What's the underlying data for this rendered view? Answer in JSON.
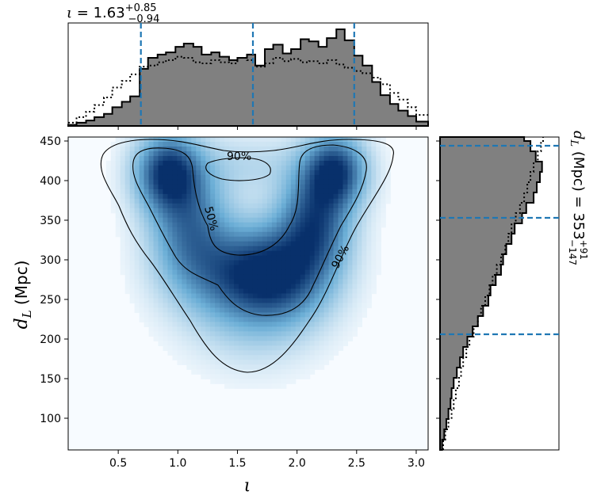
{
  "chart_data": {
    "type": "corner",
    "colors": {
      "histogram_fill": "#808080",
      "histogram_edge": "#000000",
      "quantile_line": "#1f77b4",
      "density_low": "#f7fbff",
      "density_high": "#08306b",
      "contour": "#000000"
    },
    "top_title": {
      "symbol": "ι",
      "median": "1.63",
      "plus": "+0.85",
      "minus": "−0.94"
    },
    "right_title": {
      "symbol": "d",
      "subscript": "L",
      "unit": "(Mpc)",
      "median": "353",
      "plus": "+91",
      "minus": "−147"
    },
    "xaxis": {
      "label": "ι",
      "range": [
        0.08,
        3.1
      ],
      "ticks": [
        0.5,
        1.0,
        1.5,
        2.0,
        2.5,
        3.0
      ],
      "ticklabels": [
        "0.5",
        "1.0",
        "1.5",
        "2.0",
        "2.5",
        "3.0"
      ]
    },
    "yaxis": {
      "label_symbol": "d",
      "label_subscript": "L",
      "label_unit": "(Mpc)",
      "range": [
        60,
        455
      ],
      "ticks": [
        100,
        150,
        200,
        250,
        300,
        350,
        400,
        450
      ],
      "ticklabels": [
        "100",
        "150",
        "200",
        "250",
        "300",
        "350",
        "400",
        "450"
      ]
    },
    "iota_quantiles": [
      0.69,
      1.63,
      2.48
    ],
    "dl_quantiles": [
      206,
      353,
      444
    ],
    "iota_hist": {
      "bin_edges": [
        0.08,
        0.15,
        0.23,
        0.3,
        0.38,
        0.45,
        0.53,
        0.6,
        0.68,
        0.75,
        0.83,
        0.9,
        0.98,
        1.05,
        1.13,
        1.2,
        1.28,
        1.35,
        1.43,
        1.5,
        1.58,
        1.65,
        1.73,
        1.8,
        1.88,
        1.95,
        2.03,
        2.1,
        2.18,
        2.25,
        2.33,
        2.4,
        2.48,
        2.55,
        2.63,
        2.7,
        2.78,
        2.85,
        2.93,
        3.0,
        3.1
      ],
      "posterior": [
        1,
        3,
        5,
        8,
        11,
        17,
        22,
        27,
        52,
        62,
        65,
        67,
        72,
        75,
        72,
        65,
        67,
        63,
        60,
        62,
        65,
        55,
        70,
        74,
        66,
        70,
        79,
        77,
        72,
        80,
        88,
        78,
        64,
        55,
        40,
        28,
        20,
        14,
        9,
        4
      ],
      "prior": [
        3,
        8,
        13,
        19,
        26,
        35,
        41,
        47,
        54,
        55,
        58,
        60,
        63,
        62,
        58,
        57,
        60,
        58,
        57,
        62,
        60,
        54,
        57,
        62,
        59,
        61,
        58,
        59,
        57,
        60,
        56,
        53,
        50,
        48,
        44,
        38,
        30,
        24,
        17,
        10
      ]
    },
    "dl_hist": {
      "bin_edges": [
        60,
        73,
        86,
        99,
        112,
        125,
        138,
        151,
        164,
        177,
        190,
        203,
        216,
        229,
        242,
        255,
        268,
        281,
        294,
        307,
        320,
        333,
        346,
        359,
        372,
        385,
        398,
        411,
        424,
        437,
        450,
        455
      ],
      "posterior": [
        2,
        4,
        6,
        8,
        10,
        11,
        13,
        16,
        19,
        22,
        26,
        31,
        36,
        41,
        46,
        48,
        53,
        58,
        60,
        63,
        68,
        71,
        78,
        82,
        89,
        92,
        95,
        97,
        91,
        86,
        80
      ],
      "prior": [
        3,
        5,
        8,
        11,
        13,
        15,
        18,
        20,
        22,
        25,
        28,
        32,
        36,
        39,
        43,
        47,
        50,
        54,
        58,
        62,
        65,
        68,
        72,
        76,
        80,
        83,
        86,
        89,
        93,
        96,
        98
      ]
    },
    "density_clusters": [
      {
        "x": 0.92,
        "y": 410,
        "sx": 0.18,
        "sy": 32,
        "w": 1.0
      },
      {
        "x": 2.32,
        "y": 412,
        "sx": 0.17,
        "sy": 30,
        "w": 0.95
      },
      {
        "x": 1.1,
        "y": 345,
        "sx": 0.22,
        "sy": 48,
        "w": 0.65
      },
      {
        "x": 2.15,
        "y": 348,
        "sx": 0.2,
        "sy": 45,
        "w": 0.85
      },
      {
        "x": 1.45,
        "y": 285,
        "sx": 0.32,
        "sy": 38,
        "w": 0.55
      },
      {
        "x": 1.85,
        "y": 282,
        "sx": 0.28,
        "sy": 40,
        "w": 0.8
      },
      {
        "x": 1.62,
        "y": 235,
        "sx": 0.35,
        "sy": 45,
        "w": 0.22
      },
      {
        "x": 1.6,
        "y": 420,
        "sx": 0.35,
        "sy": 25,
        "w": 0.15
      }
    ],
    "contour_labels": [
      "50%",
      "90%",
      "90%"
    ]
  }
}
